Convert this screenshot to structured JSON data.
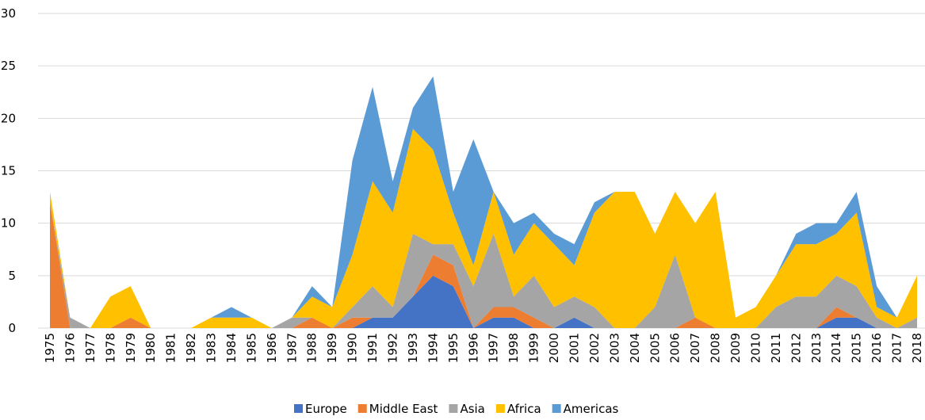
{
  "chart_data": {
    "type": "stacked_area",
    "categories": [
      "1975",
      "1976",
      "1977",
      "1978",
      "1979",
      "1980",
      "1981",
      "1982",
      "1983",
      "1984",
      "1985",
      "1986",
      "1987",
      "1988",
      "1989",
      "1990",
      "1991",
      "1992",
      "1993",
      "1994",
      "1995",
      "1996",
      "1997",
      "1998",
      "1999",
      "2000",
      "2001",
      "2002",
      "2003",
      "2004",
      "2005",
      "2006",
      "2007",
      "2008",
      "2009",
      "2010",
      "2011",
      "2012",
      "2013",
      "2014",
      "2015",
      "2016",
      "2017",
      "2018"
    ],
    "series": [
      {
        "name": "Europe",
        "color": "#4472c4",
        "values": [
          0,
          0,
          0,
          0,
          0,
          0,
          0,
          0,
          0,
          0,
          0,
          0,
          0,
          0,
          0,
          0,
          1,
          1,
          3,
          5,
          4,
          0,
          1,
          1,
          0,
          0,
          1,
          0,
          0,
          0,
          0,
          0,
          0,
          0,
          0,
          0,
          0,
          0,
          0,
          1,
          1,
          0,
          0,
          0
        ]
      },
      {
        "name": "Middle East",
        "color": "#ed7d31",
        "values": [
          12,
          0,
          0,
          0,
          1,
          0,
          0,
          0,
          0,
          0,
          0,
          0,
          0,
          1,
          0,
          1,
          0,
          0,
          0,
          2,
          2,
          0,
          1,
          1,
          1,
          0,
          0,
          0,
          0,
          0,
          0,
          0,
          1,
          0,
          0,
          0,
          0,
          0,
          0,
          1,
          0,
          0,
          0,
          0
        ]
      },
      {
        "name": "Asia",
        "color": "#a5a5a5",
        "values": [
          0,
          1,
          0,
          0,
          0,
          0,
          0,
          0,
          0,
          0,
          0,
          0,
          1,
          0,
          0,
          1,
          3,
          1,
          6,
          1,
          2,
          4,
          7,
          1,
          4,
          2,
          2,
          2,
          0,
          0,
          2,
          7,
          0,
          0,
          0,
          0,
          2,
          3,
          3,
          3,
          3,
          1,
          0,
          1
        ]
      },
      {
        "name": "Africa",
        "color": "#ffc000",
        "values": [
          1,
          0,
          0,
          3,
          3,
          0,
          0,
          0,
          1,
          1,
          1,
          0,
          0,
          2,
          2,
          5,
          10,
          9,
          10,
          9,
          3,
          2,
          4,
          4,
          5,
          6,
          3,
          9,
          13,
          13,
          7,
          6,
          9,
          13,
          1,
          2,
          3,
          5,
          5,
          4,
          7,
          1,
          1,
          4
        ]
      },
      {
        "name": "Americas",
        "color": "#5b9bd5",
        "values": [
          0,
          0,
          0,
          0,
          0,
          0,
          0,
          0,
          0,
          1,
          0,
          0,
          0,
          1,
          0,
          9,
          9,
          3,
          2,
          7,
          2,
          12,
          0,
          3,
          1,
          1,
          2,
          1,
          0,
          0,
          0,
          0,
          0,
          0,
          0,
          0,
          0,
          1,
          2,
          1,
          2,
          2,
          0,
          0
        ]
      }
    ],
    "ylim": [
      0,
      30
    ],
    "yticks": [
      0,
      5,
      10,
      15,
      20,
      25,
      30
    ],
    "grid": true,
    "legend": "bottom"
  }
}
